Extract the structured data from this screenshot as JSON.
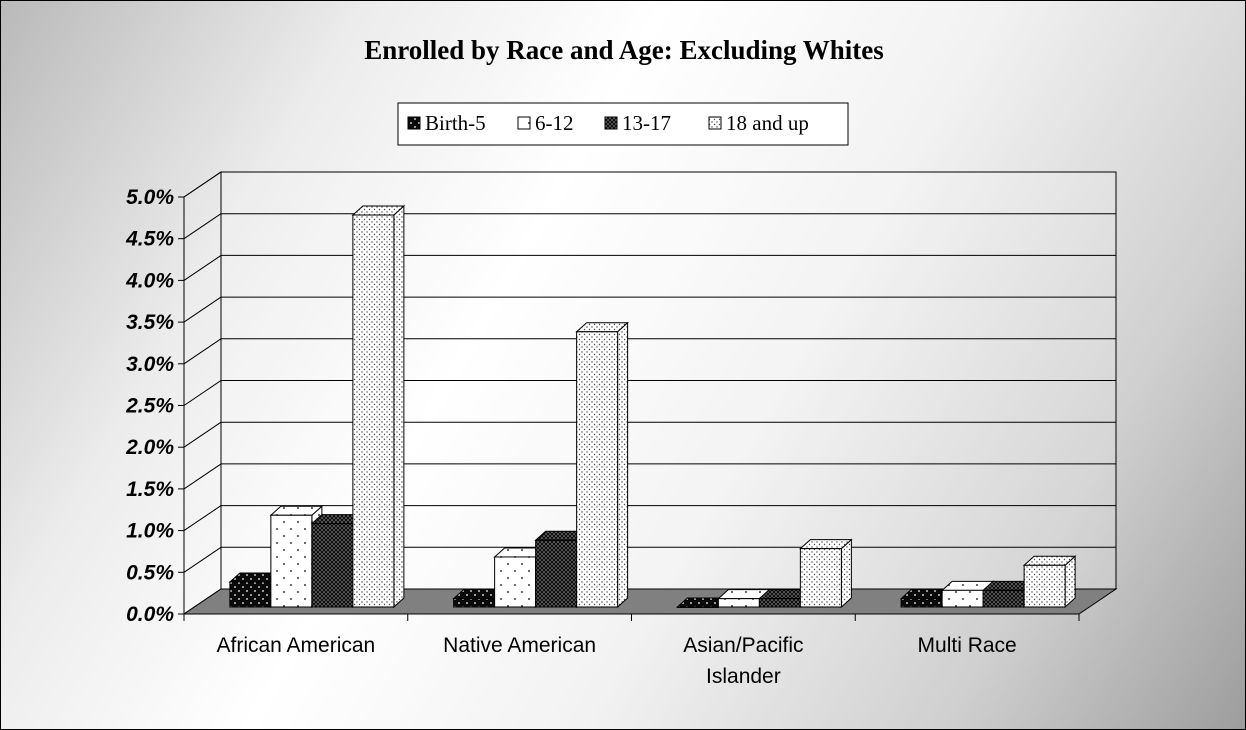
{
  "chart_data": {
    "type": "bar",
    "title": "Enrolled by Race and Age: Excluding Whites",
    "xlabel": "",
    "ylabel": "",
    "categories": [
      [
        "African American"
      ],
      [
        "Native American"
      ],
      [
        "Asian/Pacific",
        "Islander"
      ],
      [
        "Multi Race"
      ]
    ],
    "series": [
      {
        "name": "Birth-5",
        "pattern": "dark-dots",
        "values": [
          0.3,
          0.1,
          0.0,
          0.1
        ]
      },
      {
        "name": "6-12",
        "pattern": "white-sparse-dots",
        "values": [
          1.1,
          0.6,
          0.1,
          0.2
        ]
      },
      {
        "name": "13-17",
        "pattern": "dark-dense-dots",
        "values": [
          1.0,
          0.8,
          0.1,
          0.2
        ]
      },
      {
        "name": "18 and up",
        "pattern": "white-dense-dots",
        "values": [
          4.7,
          3.3,
          0.7,
          0.5
        ]
      }
    ],
    "yticks": [
      "0.0%",
      "0.5%",
      "1.0%",
      "1.5%",
      "2.0%",
      "2.5%",
      "3.0%",
      "3.5%",
      "4.0%",
      "4.5%",
      "5.0%"
    ],
    "ylim": [
      0,
      5
    ],
    "grid": true,
    "legend_position": "top",
    "style": "3d-clustered-column"
  }
}
